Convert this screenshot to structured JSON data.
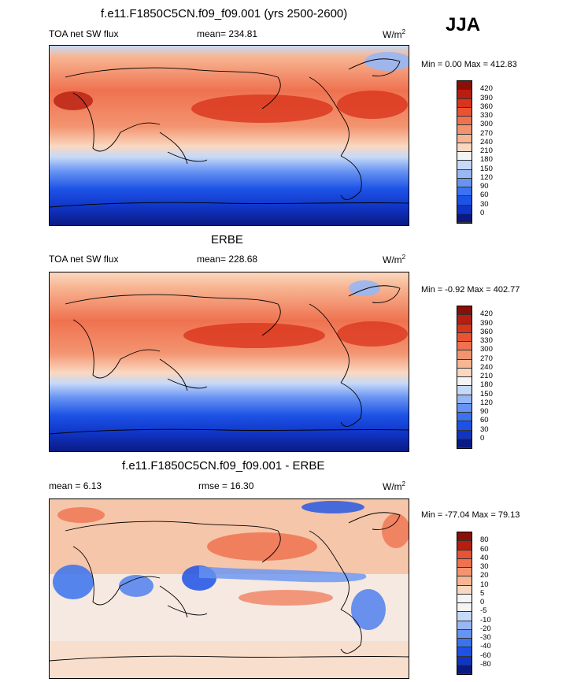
{
  "season": "JJA",
  "palette_abs": [
    "#0a1a82",
    "#1035c6",
    "#1c52e6",
    "#3a72ef",
    "#6793f2",
    "#97b7f5",
    "#c6d9f8",
    "#f4f4f4",
    "#fad8c0",
    "#f7b693",
    "#f39470",
    "#ef7250",
    "#e85333",
    "#d9341c",
    "#b81e10",
    "#8a0f06"
  ],
  "palette_diff": [
    "#0a1a82",
    "#1035c6",
    "#1c52e6",
    "#3a72ef",
    "#6793f2",
    "#97b7f5",
    "#c6d9f8",
    "#f4f4f4",
    "#f4f4f4",
    "#fad8c0",
    "#f7b693",
    "#f39470",
    "#ef7250",
    "#e85333",
    "#b81e10",
    "#8a0f06"
  ],
  "panels": [
    {
      "title": "f.e11.F1850C5CN.f09_f09.001 (yrs 2500-2600)",
      "variable": "TOA net SW flux",
      "mean_text": "mean= 234.81",
      "units": "W/m",
      "units_sup": "2",
      "minmax": "Min =   0.00 Max = 412.83",
      "levels": [
        "420",
        "390",
        "360",
        "330",
        "300",
        "270",
        "240",
        "210",
        "180",
        "150",
        "120",
        "90",
        "60",
        "30",
        "0"
      ]
    },
    {
      "title": "ERBE",
      "variable": "TOA net SW flux",
      "mean_text": "mean= 228.68",
      "units": "W/m",
      "units_sup": "2",
      "minmax": "Min =  -0.92 Max = 402.77",
      "levels": [
        "420",
        "390",
        "360",
        "330",
        "300",
        "270",
        "240",
        "210",
        "180",
        "150",
        "120",
        "90",
        "60",
        "30",
        "0"
      ]
    },
    {
      "title": "f.e11.F1850C5CN.f09_f09.001 - ERBE",
      "variable": "mean =   6.13",
      "mean_text": "rmse =  16.30",
      "units": "W/m",
      "units_sup": "2",
      "minmax": "Min = -77.04 Max =  79.13",
      "levels": [
        "80",
        "60",
        "40",
        "30",
        "20",
        "10",
        "5",
        "0",
        "-5",
        "-10",
        "-20",
        "-30",
        "-40",
        "-60",
        "-80"
      ]
    }
  ]
}
